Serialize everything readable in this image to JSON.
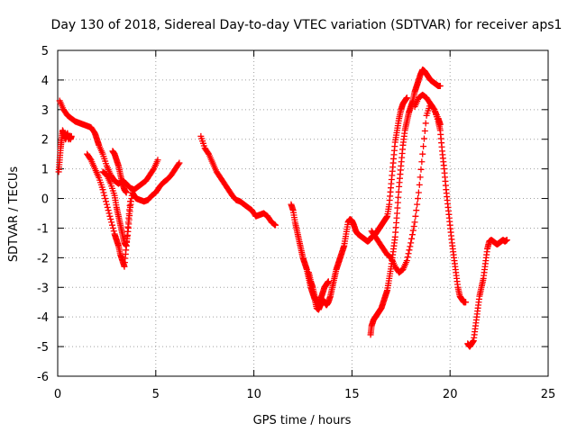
{
  "chart_data": {
    "type": "scatter",
    "title": "Day 130 of 2018, Sidereal Day-to-day VTEC variation (SDTVAR) for receiver aps1",
    "xlabel": "GPS time / hours",
    "ylabel": "SDTVAR / TECUs",
    "xlim": [
      0,
      25
    ],
    "ylim": [
      -6,
      5
    ],
    "x_ticks": [
      "0",
      "5",
      "10",
      "15",
      "20",
      "25"
    ],
    "y_ticks": [
      "5",
      "4",
      "3",
      "2",
      "1",
      "0",
      "-1",
      "-2",
      "-3",
      "-4",
      "-5",
      "-6"
    ],
    "grid": true,
    "marker": "+",
    "series": [
      {
        "color": "#ff0000",
        "tracks": [
          {
            "x": [
              0.05,
              0.1,
              0.15,
              0.2,
              0.25,
              0.3,
              0.35,
              0.4,
              0.45,
              0.5,
              0.55,
              0.6,
              0.65,
              0.7
            ],
            "y": [
              0.9,
              1.3,
              1.7,
              2.0,
              2.3,
              2.2,
              2.1,
              2.0,
              2.1,
              2.2,
              2.0,
              2.1,
              2.0,
              2.1
            ]
          },
          {
            "x": [
              0.1,
              0.3,
              0.5,
              0.7,
              0.9,
              1.1,
              1.3,
              1.5,
              1.7,
              1.9,
              2.0,
              2.1,
              2.3,
              2.5,
              2.7,
              2.9,
              3.1,
              3.3,
              3.5,
              3.7,
              3.9,
              4.1,
              4.3,
              4.5,
              4.7,
              4.9,
              5.1
            ],
            "y": [
              3.3,
              3.0,
              2.8,
              2.7,
              2.6,
              2.55,
              2.5,
              2.45,
              2.4,
              2.2,
              2.0,
              1.8,
              1.5,
              1.1,
              0.8,
              0.6,
              0.5,
              0.6,
              0.5,
              0.35,
              0.3,
              0.4,
              0.5,
              0.6,
              0.8,
              1.0,
              1.3
            ]
          },
          {
            "x": [
              1.5,
              1.7,
              1.9,
              2.1,
              2.3,
              2.5,
              2.7,
              2.9,
              3.0,
              3.1,
              3.2,
              3.3,
              3.4,
              3.5,
              3.6,
              3.7
            ],
            "y": [
              1.5,
              1.3,
              1.0,
              0.7,
              0.3,
              -0.2,
              -0.7,
              -1.2,
              -1.4,
              -1.6,
              -1.9,
              -2.1,
              -2.3,
              -1.6,
              -0.8,
              -0.1
            ]
          },
          {
            "x": [
              2.3,
              2.5,
              2.7,
              2.9,
              3.0,
              3.1,
              3.2,
              3.3,
              3.4,
              3.5,
              3.6,
              3.7,
              3.8,
              3.9,
              4.0,
              4.2,
              4.4,
              4.6,
              4.8,
              5.0,
              5.2,
              5.4,
              5.6,
              5.8,
              6.0,
              6.2
            ],
            "y": [
              0.9,
              0.8,
              0.5,
              0.1,
              -0.3,
              -0.6,
              -0.9,
              -1.2,
              -1.5,
              -1.6,
              -1.0,
              -0.3,
              0.2,
              0.1,
              0.0,
              -0.05,
              -0.1,
              -0.05,
              0.1,
              0.2,
              0.4,
              0.55,
              0.65,
              0.8,
              1.0,
              1.2
            ]
          },
          {
            "x": [
              2.8,
              2.9,
              3.0,
              3.1,
              3.2,
              3.3,
              3.4,
              3.5
            ],
            "y": [
              1.6,
              1.5,
              1.3,
              1.1,
              0.8,
              0.5,
              0.3,
              0.2
            ]
          },
          {
            "x": [
              7.3,
              7.5,
              7.7,
              7.9,
              8.1,
              8.3,
              8.5,
              8.7,
              8.9,
              9.1,
              9.3,
              9.5,
              9.7,
              9.9,
              10.1,
              10.3,
              10.5,
              10.7,
              10.9,
              11.1
            ],
            "y": [
              2.1,
              1.7,
              1.5,
              1.2,
              0.9,
              0.7,
              0.5,
              0.3,
              0.1,
              -0.05,
              -0.1,
              -0.2,
              -0.3,
              -0.4,
              -0.6,
              -0.55,
              -0.5,
              -0.6,
              -0.8,
              -0.9
            ]
          },
          {
            "x": [
              11.9,
              12.0,
              12.1,
              12.2,
              12.3,
              12.4,
              12.5,
              12.6,
              12.7,
              12.8,
              12.9,
              13.0,
              13.1,
              13.2,
              13.3,
              13.4,
              13.5,
              13.6,
              13.7,
              13.8,
              13.9,
              14.0,
              14.1,
              14.2,
              14.3,
              14.4,
              14.5,
              14.6,
              14.7,
              14.8,
              14.9,
              15.0,
              15.1,
              15.2,
              15.3,
              15.4,
              15.5,
              15.6,
              15.7,
              15.8,
              15.9,
              16.0,
              16.1,
              16.2,
              16.3,
              16.4,
              16.5,
              16.6,
              16.7,
              16.8,
              16.9,
              17.0,
              17.1,
              17.2,
              17.3,
              17.4,
              17.5,
              17.6,
              17.7,
              17.8
            ],
            "y": [
              -0.2,
              -0.4,
              -0.8,
              -1.1,
              -1.4,
              -1.7,
              -2.0,
              -2.2,
              -2.4,
              -2.7,
              -3.0,
              -3.2,
              -3.4,
              -3.7,
              -3.75,
              -3.6,
              -3.4,
              -3.5,
              -3.6,
              -3.5,
              -3.3,
              -3.0,
              -2.7,
              -2.4,
              -2.2,
              -2.0,
              -1.8,
              -1.6,
              -1.2,
              -0.8,
              -0.7,
              -0.75,
              -0.9,
              -1.1,
              -1.2,
              -1.25,
              -1.3,
              -1.35,
              -1.4,
              -1.45,
              -1.4,
              -1.3,
              -1.25,
              -1.2,
              -1.1,
              -1.0,
              -0.9,
              -0.8,
              -0.7,
              -0.6,
              -0.2,
              0.5,
              1.2,
              1.9,
              2.3,
              2.7,
              3.0,
              3.2,
              3.3,
              3.4
            ]
          },
          {
            "x": [
              12.8,
              12.9,
              13.0,
              13.1,
              13.2,
              13.3,
              13.4,
              13.5,
              13.6,
              13.7,
              13.8
            ],
            "y": [
              -2.5,
              -2.8,
              -3.0,
              -3.3,
              -3.5,
              -3.6,
              -3.4,
              -3.2,
              -3.0,
              -2.9,
              -2.8
            ]
          },
          {
            "x": [
              15.95,
              16.0,
              16.1,
              16.2,
              16.3,
              16.4,
              16.5,
              16.6,
              16.7,
              16.8,
              16.9,
              17.0,
              17.1,
              17.2,
              17.3,
              17.4,
              17.5,
              17.6,
              17.7,
              17.8,
              17.9,
              18.0,
              18.1,
              18.2,
              18.3,
              18.4,
              18.5,
              18.6,
              18.7,
              18.8,
              18.9,
              19.0,
              19.1,
              19.2,
              19.3,
              19.4,
              19.5
            ],
            "y": [
              -4.6,
              -4.3,
              -4.1,
              -4.0,
              -3.9,
              -3.8,
              -3.7,
              -3.5,
              -3.3,
              -3.1,
              -2.7,
              -2.3,
              -1.8,
              -1.3,
              -0.5,
              0.4,
              1.1,
              1.8,
              2.3,
              2.6,
              2.9,
              3.1,
              3.3,
              3.6,
              3.8,
              4.0,
              4.2,
              4.35,
              4.3,
              4.2,
              4.1,
              4.0,
              3.95,
              3.9,
              3.85,
              3.8,
              3.8
            ]
          },
          {
            "x": [
              16.0,
              16.2,
              16.4,
              16.6,
              16.8,
              17.0,
              17.2,
              17.4,
              17.6,
              17.8,
              18.0,
              18.2,
              18.4,
              18.6,
              18.8,
              19.0,
              19.2,
              19.4,
              19.5,
              19.6,
              19.7,
              19.8,
              19.9,
              20.0,
              20.1,
              20.2,
              20.3,
              20.4,
              20.5,
              20.6,
              20.7,
              20.8
            ],
            "y": [
              -1.1,
              -1.3,
              -1.5,
              -1.7,
              -1.9,
              -2.0,
              -2.3,
              -2.5,
              -2.4,
              -2.1,
              -1.5,
              -0.8,
              0.2,
              1.5,
              2.8,
              3.2,
              3.0,
              2.6,
              2.3,
              1.6,
              1.0,
              0.3,
              -0.3,
              -0.9,
              -1.5,
              -2.0,
              -2.5,
              -3.0,
              -3.3,
              -3.4,
              -3.5,
              -3.5
            ]
          },
          {
            "x": [
              18.2,
              18.4,
              18.6,
              18.8,
              19.0,
              19.2,
              19.4,
              19.5
            ],
            "y": [
              3.1,
              3.4,
              3.5,
              3.4,
              3.2,
              3.0,
              2.7,
              2.5
            ]
          },
          {
            "x": [
              20.9,
              21.0,
              21.1,
              21.2,
              21.3,
              21.4,
              21.5,
              21.6,
              21.7,
              21.8,
              21.9,
              22.0,
              22.1,
              22.2,
              22.3,
              22.4,
              22.5,
              22.6,
              22.7,
              22.8,
              22.9
            ],
            "y": [
              -4.9,
              -5.0,
              -4.9,
              -4.8,
              -4.3,
              -3.8,
              -3.3,
              -3.0,
              -2.7,
              -2.2,
              -1.7,
              -1.45,
              -1.4,
              -1.45,
              -1.5,
              -1.55,
              -1.5,
              -1.45,
              -1.4,
              -1.45,
              -1.4
            ]
          }
        ]
      }
    ]
  }
}
